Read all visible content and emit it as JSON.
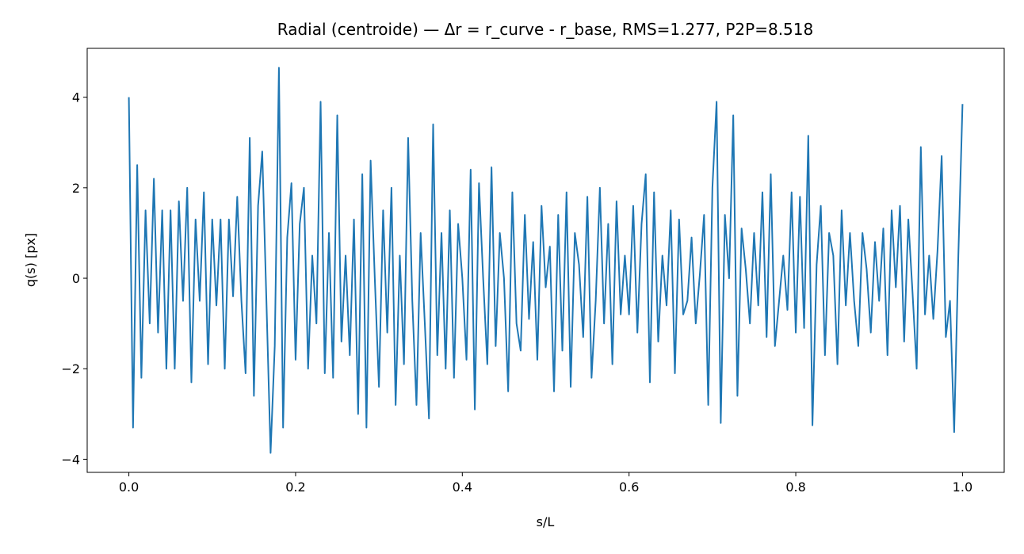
{
  "chart_data": {
    "type": "line",
    "title": "Radial (centroide) — Δr = r_curve - r_base, RMS=1.277, P2P=8.518",
    "x_label": "s/L",
    "y_label": "q(s) [px]",
    "color": "#1f77b4",
    "xlim": [
      -0.05,
      1.05
    ],
    "ylim": [
      -4.29,
      5.08
    ],
    "xticks": [
      {
        "value": 0,
        "label": "0.0"
      },
      0.2,
      0.4,
      0.6,
      0.8,
      {
        "value": 1,
        "label": "1.0"
      }
    ],
    "yticks": [
      {
        "value": -4,
        "label": "−4"
      },
      {
        "value": -2,
        "label": "−2"
      },
      0,
      2,
      4
    ],
    "x": [
      0,
      0.005,
      0.01,
      0.015,
      0.02,
      0.025,
      0.03,
      0.035,
      0.04,
      0.045,
      0.05,
      0.055,
      0.06,
      0.065,
      0.07,
      0.075,
      0.08,
      0.085,
      0.09,
      0.095,
      0.1,
      0.105,
      0.11,
      0.115,
      0.12,
      0.125,
      0.13,
      0.135,
      0.14,
      0.145,
      0.15,
      0.155,
      0.16,
      0.165,
      0.17,
      0.175,
      0.18,
      0.185,
      0.19,
      0.195,
      0.2,
      0.205,
      0.21,
      0.215,
      0.22,
      0.225,
      0.23,
      0.235,
      0.24,
      0.245,
      0.25,
      0.255,
      0.26,
      0.265,
      0.27,
      0.275,
      0.28,
      0.285,
      0.29,
      0.295,
      0.3,
      0.305,
      0.31,
      0.315,
      0.32,
      0.325,
      0.33,
      0.335,
      0.34,
      0.345,
      0.35,
      0.355,
      0.36,
      0.365,
      0.37,
      0.375,
      0.38,
      0.385,
      0.39,
      0.395,
      0.4,
      0.405,
      0.41,
      0.415,
      0.42,
      0.425,
      0.43,
      0.435,
      0.44,
      0.445,
      0.45,
      0.455,
      0.46,
      0.465,
      0.47,
      0.475,
      0.48,
      0.485,
      0.49,
      0.495,
      0.5,
      0.505,
      0.51,
      0.515,
      0.52,
      0.525,
      0.53,
      0.535,
      0.54,
      0.545,
      0.55,
      0.555,
      0.56,
      0.565,
      0.57,
      0.575,
      0.58,
      0.585,
      0.59,
      0.595,
      0.6,
      0.605,
      0.61,
      0.615,
      0.62,
      0.625,
      0.63,
      0.635,
      0.64,
      0.645,
      0.65,
      0.655,
      0.66,
      0.665,
      0.67,
      0.675,
      0.68,
      0.685,
      0.69,
      0.695,
      0.7,
      0.705,
      0.71,
      0.715,
      0.72,
      0.725,
      0.73,
      0.735,
      0.74,
      0.745,
      0.75,
      0.755,
      0.76,
      0.765,
      0.77,
      0.775,
      0.78,
      0.785,
      0.79,
      0.795,
      0.8,
      0.805,
      0.81,
      0.815,
      0.82,
      0.825,
      0.83,
      0.835,
      0.84,
      0.845,
      0.85,
      0.855,
      0.86,
      0.865,
      0.87,
      0.875,
      0.88,
      0.885,
      0.89,
      0.895,
      0.9,
      0.905,
      0.91,
      0.915,
      0.92,
      0.925,
      0.93,
      0.935,
      0.94,
      0.945,
      0.95,
      0.955,
      0.96,
      0.965,
      0.97,
      0.975,
      0.98,
      0.985,
      0.99,
      0.995,
      1
    ],
    "values": [
      4.0,
      -3.3,
      2.5,
      -2.2,
      1.5,
      -1.0,
      2.2,
      -1.2,
      1.5,
      -2.0,
      1.5,
      -2.0,
      1.7,
      -0.5,
      2.0,
      -2.3,
      1.3,
      -0.5,
      1.9,
      -1.9,
      1.3,
      -0.6,
      1.3,
      -2.0,
      1.3,
      -0.4,
      1.8,
      -0.5,
      -2.1,
      3.1,
      -2.6,
      1.6,
      2.8,
      -0.5,
      -3.86,
      -1.5,
      4.65,
      -3.3,
      0.9,
      2.1,
      -1.8,
      1.2,
      2.0,
      -2.0,
      0.5,
      -1.0,
      3.9,
      -2.1,
      1.0,
      -2.2,
      3.6,
      -1.4,
      0.5,
      -1.7,
      1.3,
      -3.0,
      2.3,
      -3.3,
      2.6,
      0.0,
      -2.4,
      1.5,
      -1.2,
      2.0,
      -2.8,
      0.5,
      -1.9,
      3.1,
      -0.5,
      -2.8,
      1.0,
      -1.0,
      -3.1,
      3.4,
      -1.7,
      1.0,
      -2.0,
      1.5,
      -2.2,
      1.2,
      0.0,
      -1.8,
      2.4,
      -2.9,
      2.1,
      0.0,
      -1.9,
      2.45,
      -1.5,
      1.0,
      0.0,
      -2.5,
      1.9,
      -1.0,
      -1.6,
      1.4,
      -0.9,
      0.8,
      -1.8,
      1.6,
      -0.2,
      0.7,
      -2.5,
      1.4,
      -1.6,
      1.9,
      -2.4,
      1.0,
      0.3,
      -1.3,
      1.8,
      -2.2,
      -0.5,
      2.0,
      -1.0,
      1.2,
      -1.9,
      1.7,
      -0.8,
      0.5,
      -0.8,
      1.6,
      -1.2,
      1.2,
      2.3,
      -2.3,
      1.9,
      -1.4,
      0.5,
      -0.6,
      1.5,
      -2.1,
      1.3,
      -0.8,
      -0.5,
      0.9,
      -1.0,
      0.1,
      1.4,
      -2.8,
      2.0,
      3.9,
      -3.2,
      1.4,
      0.0,
      3.6,
      -2.6,
      1.1,
      0.2,
      -1.0,
      1.0,
      -0.6,
      1.9,
      -1.3,
      2.3,
      -1.5,
      -0.5,
      0.5,
      -0.7,
      1.9,
      -1.2,
      1.8,
      -1.1,
      3.15,
      -3.25,
      0.3,
      1.6,
      -1.7,
      1.0,
      0.5,
      -1.9,
      1.5,
      -0.6,
      1.0,
      -0.5,
      -1.5,
      1.0,
      0.2,
      -1.2,
      0.8,
      -0.5,
      1.1,
      -1.7,
      1.5,
      -0.2,
      1.6,
      -1.4,
      1.3,
      -0.3,
      -2.0,
      2.9,
      -0.8,
      0.5,
      -0.9,
      0.6,
      2.7,
      -1.3,
      -0.5,
      -3.4,
      0.5,
      3.85
    ]
  }
}
